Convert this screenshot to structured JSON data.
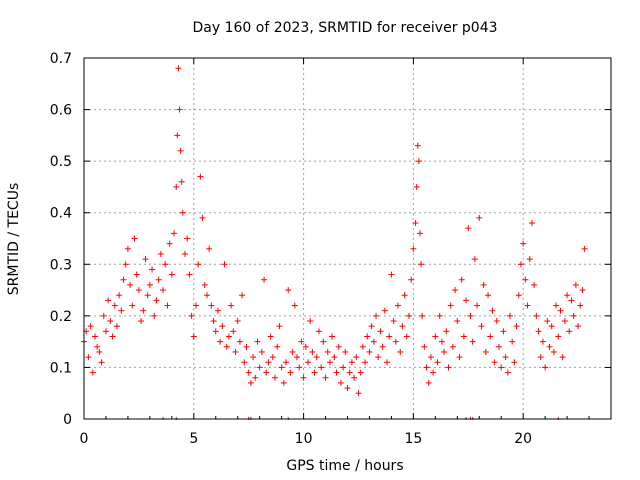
{
  "chart_data": {
    "type": "scatter",
    "title": "Day 160 of 2023, SRMTID for receiver p043",
    "xlabel": "GPS time / hours",
    "ylabel": "SRMTID / TECUs",
    "xlim": [
      0,
      24
    ],
    "ylim": [
      0,
      0.7
    ],
    "xticks": [
      0,
      5,
      10,
      15,
      20
    ],
    "yticks": [
      0,
      0.1,
      0.2,
      0.3,
      0.4,
      0.5,
      0.6,
      0.7
    ],
    "xtick_labels": [
      "0",
      "5",
      "10",
      "15",
      "20"
    ],
    "ytick_labels": [
      "0",
      "0.1",
      "0.2",
      "0.3",
      "0.4",
      "0.5",
      "0.6",
      "0.7"
    ],
    "grid": true,
    "marker": "+",
    "color": "#ff0000",
    "series": [
      {
        "name": "SRMTID",
        "x": [
          0.0,
          0.1,
          0.2,
          0.3,
          0.4,
          0.5,
          0.6,
          0.7,
          0.8,
          0.9,
          1.0,
          1.1,
          1.2,
          1.3,
          1.4,
          1.5,
          1.6,
          1.7,
          1.8,
          1.9,
          2.0,
          2.1,
          2.2,
          2.3,
          2.4,
          2.5,
          2.6,
          2.7,
          2.8,
          2.9,
          3.0,
          3.1,
          3.2,
          3.3,
          3.4,
          3.5,
          3.6,
          3.7,
          3.8,
          3.9,
          4.0,
          4.1,
          4.2,
          4.25,
          4.3,
          4.35,
          4.4,
          4.45,
          4.5,
          4.6,
          4.7,
          4.8,
          4.9,
          5.0,
          5.1,
          5.2,
          5.3,
          5.4,
          5.5,
          5.6,
          5.7,
          5.8,
          5.9,
          6.0,
          6.1,
          6.2,
          6.3,
          6.4,
          6.5,
          6.6,
          6.7,
          6.8,
          6.9,
          7.0,
          7.1,
          7.2,
          7.3,
          7.4,
          7.5,
          7.6,
          7.7,
          7.8,
          7.9,
          8.0,
          8.1,
          8.2,
          8.3,
          8.4,
          8.5,
          8.6,
          8.7,
          8.8,
          8.9,
          9.0,
          9.1,
          9.2,
          9.3,
          9.4,
          9.5,
          9.6,
          9.7,
          9.8,
          9.9,
          10.0,
          10.1,
          10.2,
          10.3,
          10.4,
          10.5,
          10.6,
          10.7,
          10.8,
          10.9,
          11.0,
          11.1,
          11.2,
          11.3,
          11.4,
          11.5,
          11.6,
          11.7,
          11.8,
          11.9,
          12.0,
          12.1,
          12.2,
          12.3,
          12.4,
          12.5,
          12.6,
          12.7,
          12.8,
          12.9,
          13.0,
          13.1,
          13.2,
          13.3,
          13.4,
          13.5,
          13.6,
          13.7,
          13.8,
          13.9,
          14.0,
          14.1,
          14.2,
          14.3,
          14.4,
          14.5,
          14.6,
          14.7,
          14.8,
          14.9,
          15.0,
          15.1,
          15.15,
          15.2,
          15.25,
          15.3,
          15.35,
          15.4,
          15.5,
          15.6,
          15.7,
          15.8,
          15.9,
          16.0,
          16.1,
          16.2,
          16.3,
          16.4,
          16.5,
          16.6,
          16.7,
          16.8,
          16.9,
          17.0,
          17.1,
          17.2,
          17.3,
          17.4,
          17.5,
          17.6,
          17.7,
          17.8,
          17.9,
          18.0,
          18.1,
          18.2,
          18.3,
          18.4,
          18.5,
          18.6,
          18.7,
          18.8,
          18.9,
          19.0,
          19.1,
          19.2,
          19.3,
          19.4,
          19.5,
          19.6,
          19.7,
          19.8,
          19.9,
          20.0,
          20.1,
          20.2,
          20.3,
          20.4,
          20.5,
          20.6,
          20.7,
          20.8,
          20.9,
          21.0,
          21.1,
          21.2,
          21.3,
          21.4,
          21.5,
          21.6,
          21.7,
          21.8,
          21.9,
          22.0,
          22.1,
          22.2,
          22.3,
          22.4,
          22.5,
          22.6,
          22.7,
          22.8
        ],
        "y": [
          0.15,
          0.17,
          0.12,
          0.18,
          0.09,
          0.16,
          0.14,
          0.13,
          0.11,
          0.2,
          0.17,
          0.23,
          0.19,
          0.16,
          0.22,
          0.18,
          0.24,
          0.21,
          0.27,
          0.3,
          0.33,
          0.26,
          0.22,
          0.35,
          0.28,
          0.25,
          0.19,
          0.21,
          0.31,
          0.24,
          0.26,
          0.29,
          0.2,
          0.23,
          0.27,
          0.32,
          0.25,
          0.3,
          0.22,
          0.34,
          0.28,
          0.36,
          0.45,
          0.55,
          0.68,
          0.6,
          0.52,
          0.46,
          0.4,
          0.32,
          0.35,
          0.28,
          0.2,
          0.16,
          0.22,
          0.3,
          0.47,
          0.39,
          0.26,
          0.24,
          0.33,
          0.22,
          0.19,
          0.17,
          0.21,
          0.15,
          0.18,
          0.3,
          0.14,
          0.16,
          0.22,
          0.17,
          0.13,
          0.19,
          0.15,
          0.24,
          0.11,
          0.14,
          0.09,
          0.07,
          0.12,
          0.08,
          0.15,
          0.1,
          0.13,
          0.27,
          0.09,
          0.11,
          0.16,
          0.12,
          0.08,
          0.14,
          0.18,
          0.1,
          0.07,
          0.11,
          0.25,
          0.09,
          0.13,
          0.22,
          0.12,
          0.1,
          0.15,
          0.08,
          0.14,
          0.11,
          0.19,
          0.13,
          0.09,
          0.12,
          0.17,
          0.1,
          0.15,
          0.08,
          0.13,
          0.11,
          0.16,
          0.12,
          0.09,
          0.14,
          0.07,
          0.1,
          0.13,
          0.06,
          0.09,
          0.11,
          0.08,
          0.12,
          0.05,
          0.09,
          0.14,
          0.11,
          0.16,
          0.13,
          0.18,
          0.15,
          0.2,
          0.12,
          0.17,
          0.14,
          0.21,
          0.11,
          0.16,
          0.28,
          0.19,
          0.15,
          0.22,
          0.13,
          0.18,
          0.24,
          0.16,
          0.2,
          0.27,
          0.33,
          0.38,
          0.45,
          0.53,
          0.5,
          0.36,
          0.3,
          0.2,
          0.14,
          0.1,
          0.07,
          0.12,
          0.09,
          0.16,
          0.11,
          0.2,
          0.15,
          0.13,
          0.17,
          0.1,
          0.22,
          0.14,
          0.25,
          0.19,
          0.12,
          0.27,
          0.16,
          0.23,
          0.37,
          0.2,
          0.15,
          0.31,
          0.22,
          0.39,
          0.18,
          0.26,
          0.13,
          0.24,
          0.16,
          0.21,
          0.11,
          0.19,
          0.14,
          0.1,
          0.17,
          0.12,
          0.09,
          0.2,
          0.15,
          0.11,
          0.18,
          0.24,
          0.3,
          0.34,
          0.27,
          0.22,
          0.31,
          0.38,
          0.26,
          0.2,
          0.17,
          0.12,
          0.15,
          0.1,
          0.19,
          0.14,
          0.18,
          0.13,
          0.22,
          0.16,
          0.21,
          0.12,
          0.19,
          0.24,
          0.17,
          0.23,
          0.2,
          0.26,
          0.18,
          0.22,
          0.25,
          0.33
        ]
      }
    ],
    "x_axis_markers": [
      3.6,
      4.2,
      7.5,
      7.6,
      9.3,
      17.4,
      17.6,
      17.7,
      21.6
    ]
  }
}
